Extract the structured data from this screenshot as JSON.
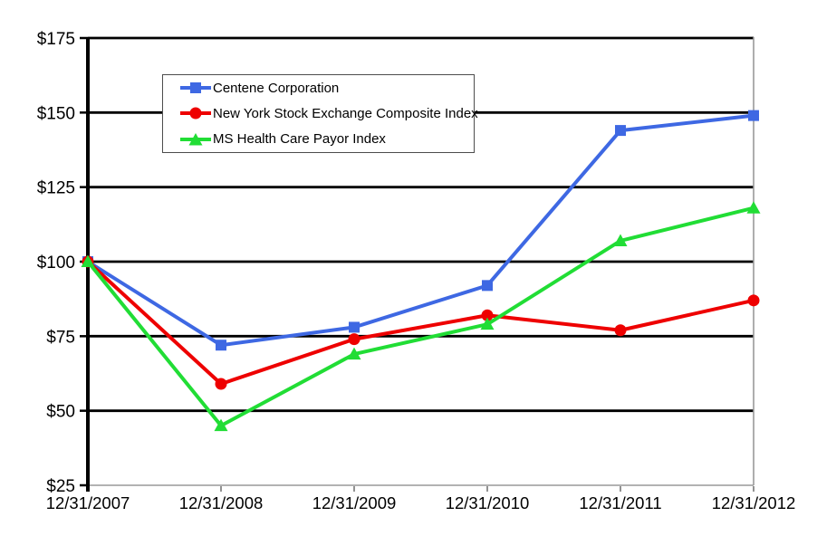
{
  "chart_data": {
    "type": "line",
    "x": [
      "12/31/2007",
      "12/31/2008",
      "12/31/2009",
      "12/31/2010",
      "12/31/2011",
      "12/31/2012"
    ],
    "series": [
      {
        "name": "Centene Corporation",
        "color": "#3e68e3",
        "marker": "square",
        "values": [
          100,
          72,
          78,
          92,
          144,
          149
        ]
      },
      {
        "name": "New York Stock Exchange Composite Index",
        "color": "#ee0000",
        "marker": "circle",
        "values": [
          100,
          59,
          74,
          82,
          77,
          87
        ]
      },
      {
        "name": "MS Health Care Payor Index",
        "color": "#21dd35",
        "marker": "triangle",
        "values": [
          100,
          45,
          69,
          79,
          107,
          118
        ]
      }
    ],
    "ylim": [
      25,
      175
    ],
    "yticks": [
      25,
      50,
      75,
      100,
      125,
      150,
      175
    ],
    "ytick_labels": [
      "$25",
      "$50",
      "$75",
      "$100",
      "$125",
      "$150",
      "$175"
    ],
    "grid": true,
    "legend_position": "upper-left-inside",
    "axis_color": "#000000",
    "baseline_color": "#999999",
    "tick_color": "#777777"
  }
}
